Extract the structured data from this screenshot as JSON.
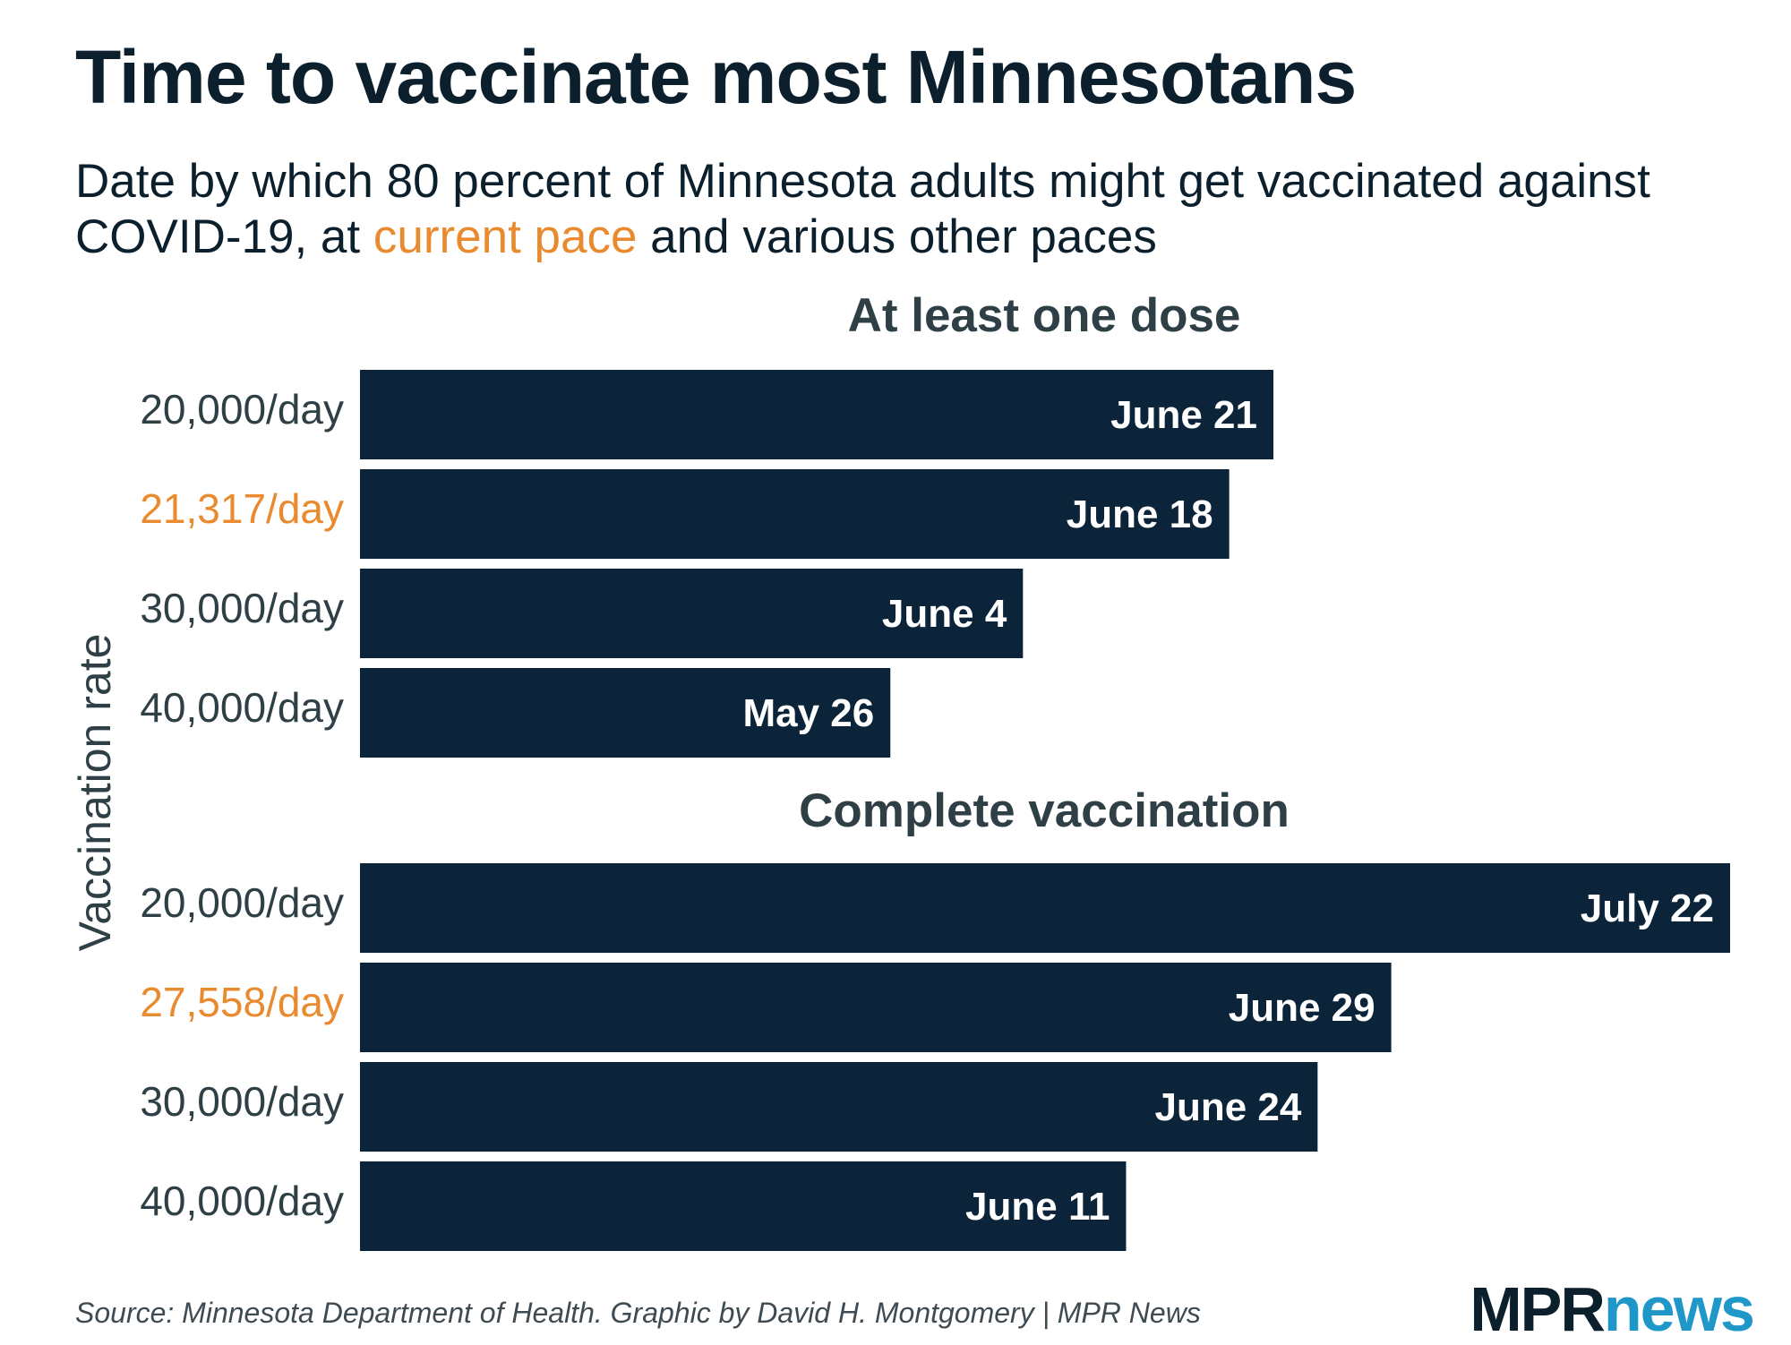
{
  "title": "Time to vaccinate most Minnesotans",
  "subtitle": {
    "prefix": "Date by which 80 percent of Minnesota adults might get vaccinated against COVID-19, at ",
    "highlight": "current pace",
    "suffix": " and various other paces"
  },
  "source": "Source: Minnesota Department of Health. Graphic by David H. Montgomery | MPR News",
  "logo": {
    "part1": "MPR",
    "part2": "news"
  },
  "colors": {
    "bar": "#0b243a",
    "bar_label": "#ffffff",
    "category_label": "#2f3f46",
    "current_pace": "#ea8a2f",
    "logo_mpr": "#0b1f2c",
    "logo_news": "#1f97c9"
  },
  "chart_data": {
    "type": "bar",
    "orientation": "horizontal",
    "y_axis_label": "Vaccination rate",
    "x_unit": "date",
    "x_domain": [
      "2021-04-20",
      "2021-07-22"
    ],
    "panels": [
      {
        "title": "At least one dose",
        "bars": [
          {
            "category": "20,000/day",
            "value": "2021-06-21",
            "label": "June 21",
            "current_pace": false
          },
          {
            "category": "21,317/day",
            "value": "2021-06-18",
            "label": "June 18",
            "current_pace": true
          },
          {
            "category": "30,000/day",
            "value": "2021-06-04",
            "label": "June 4",
            "current_pace": false
          },
          {
            "category": "40,000/day",
            "value": "2021-05-26",
            "label": "May 26",
            "current_pace": false
          }
        ]
      },
      {
        "title": "Complete vaccination",
        "bars": [
          {
            "category": "20,000/day",
            "value": "2021-07-22",
            "label": "July 22",
            "current_pace": false
          },
          {
            "category": "27,558/day",
            "value": "2021-06-29",
            "label": "June 29",
            "current_pace": true
          },
          {
            "category": "30,000/day",
            "value": "2021-06-24",
            "label": "June 24",
            "current_pace": false
          },
          {
            "category": "40,000/day",
            "value": "2021-06-11",
            "label": "June 11",
            "current_pace": false
          }
        ]
      }
    ]
  }
}
